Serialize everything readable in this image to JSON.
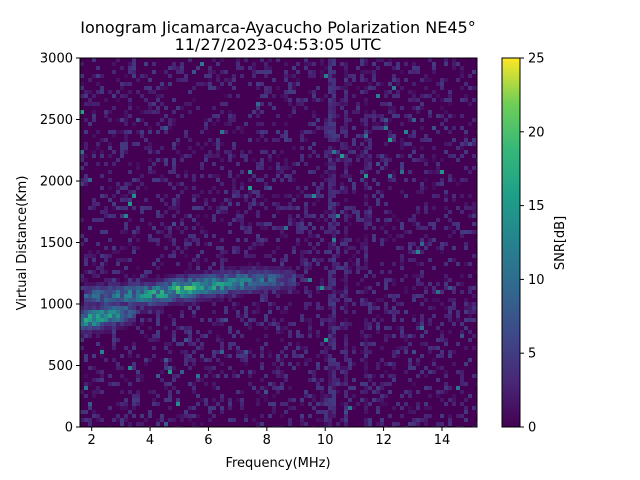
{
  "chart_data": {
    "type": "heatmap",
    "title": "Ionogram Jicamarca-Ayacucho Polarization NE45°",
    "subtitle": "11/27/2023-04:53:05 UTC",
    "xlabel": "Frequency(MHz)",
    "ylabel": "Virtual Distance(Km)",
    "xlim": [
      1.6,
      15.2
    ],
    "ylim": [
      0,
      3000
    ],
    "xticks": [
      2,
      4,
      6,
      8,
      10,
      12,
      14
    ],
    "yticks": [
      0,
      500,
      1000,
      1500,
      2000,
      2500,
      3000
    ],
    "colorbar": {
      "label": "SNR[dB]",
      "range": [
        0,
        25
      ],
      "ticks": [
        0,
        5,
        10,
        15,
        20,
        25
      ],
      "colormap": "viridis"
    },
    "traces": [
      {
        "name": "echo-trace-lower",
        "points": [
          [
            1.6,
            850,
            14
          ],
          [
            2.0,
            880,
            18
          ],
          [
            2.5,
            900,
            17
          ],
          [
            3.0,
            920,
            12
          ],
          [
            3.5,
            945,
            8
          ]
        ]
      },
      {
        "name": "echo-trace-upper",
        "points": [
          [
            1.8,
            1060,
            9
          ],
          [
            3.0,
            1070,
            12
          ],
          [
            4.0,
            1080,
            16
          ],
          [
            5.0,
            1120,
            20
          ],
          [
            6.0,
            1150,
            17
          ],
          [
            7.0,
            1180,
            14
          ],
          [
            8.0,
            1200,
            10
          ],
          [
            9.0,
            1200,
            6
          ]
        ]
      },
      {
        "name": "vertical-noise-band",
        "points": [
          [
            10.2,
            0,
            5
          ],
          [
            10.2,
            3000,
            5
          ],
          [
            10.7,
            0,
            4
          ],
          [
            10.7,
            3000,
            4
          ],
          [
            11.4,
            0,
            3
          ],
          [
            11.4,
            3000,
            3
          ]
        ]
      }
    ],
    "colors": {
      "low": "#440154",
      "high": "#fde725"
    }
  }
}
